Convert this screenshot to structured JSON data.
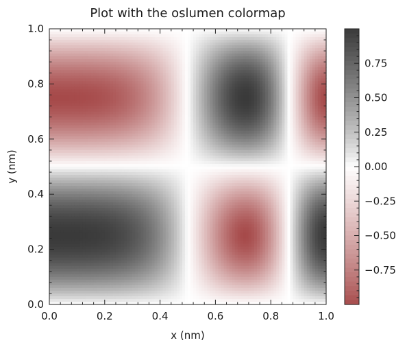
{
  "chart_data": {
    "type": "heatmap",
    "title": "Plot with the oslumen colormap",
    "xlabel": "x (nm)",
    "ylabel": "y (nm)",
    "xlim": [
      0.0,
      1.0
    ],
    "ylim": [
      0.0,
      1.0
    ],
    "x_ticks": [
      "0.0",
      "0.2",
      "0.4",
      "0.6",
      "0.8",
      "1.0"
    ],
    "y_ticks": [
      "0.0",
      "0.2",
      "0.4",
      "0.6",
      "0.8",
      "1.0"
    ],
    "field": "z = cos(2*pi*x^2) * sin(2*pi*y)",
    "color_range": [
      -1.0,
      1.0
    ],
    "colormap": {
      "name": "oslumen",
      "low": "#a64a4a",
      "mid": "#ffffff",
      "high": "#3a3a3a"
    },
    "colorbar": {
      "ticks": [
        0.75,
        0.5,
        0.25,
        0.0,
        -0.25,
        -0.5,
        -0.75
      ],
      "tick_labels": [
        "0.75",
        "0.50",
        "0.25",
        "0.00",
        "−0.25",
        "−0.50",
        "−0.75"
      ]
    },
    "grid": false
  }
}
